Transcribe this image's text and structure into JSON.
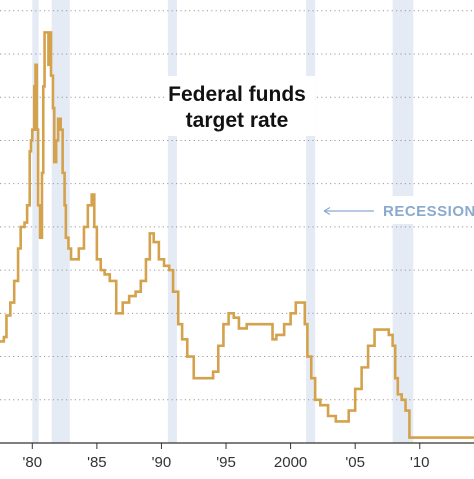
{
  "chart_data": {
    "type": "line",
    "title_lines": [
      "Federal funds",
      "target rate"
    ],
    "xlabel": "",
    "ylabel": "",
    "xlim": [
      1977.5,
      2014.2
    ],
    "ylim": [
      0,
      20.5
    ],
    "grid": true,
    "y_gridlines": [
      0,
      2,
      4,
      6,
      8,
      10,
      12,
      14,
      16,
      18,
      20
    ],
    "x_ticks": [
      {
        "value": 1980,
        "label": "'80"
      },
      {
        "value": 1985,
        "label": "'85"
      },
      {
        "value": 1990,
        "label": "'90"
      },
      {
        "value": 1995,
        "label": "'95"
      },
      {
        "value": 2000,
        "label": "2000"
      },
      {
        "value": 2005,
        "label": "'05"
      },
      {
        "value": 2010,
        "label": "'10"
      }
    ],
    "recession_label": "RECESSION",
    "recessions": [
      {
        "start": 1980.0,
        "end": 1980.5
      },
      {
        "start": 1981.5,
        "end": 1982.9
      },
      {
        "start": 1990.5,
        "end": 1991.2
      },
      {
        "start": 2001.2,
        "end": 2001.9
      },
      {
        "start": 2007.9,
        "end": 2009.5
      }
    ],
    "colors": {
      "line": "#d4a24c",
      "recession": "#e4ebf5",
      "grid": "#999999",
      "axis": "#333333",
      "recession_text": "#8aaad0"
    },
    "series": [
      {
        "x": [
          1977.5,
          1977.8,
          1978.0,
          1978.3,
          1978.6,
          1978.9,
          1979.1,
          1979.4,
          1979.6,
          1979.8,
          1979.9,
          1980.0,
          1980.15,
          1980.25,
          1980.35,
          1980.45,
          1980.6,
          1980.75,
          1980.85,
          1980.95,
          1981.1,
          1981.25,
          1981.35,
          1981.45,
          1981.6,
          1981.7,
          1981.85,
          1982.0,
          1982.1,
          1982.2,
          1982.35,
          1982.5,
          1982.6,
          1982.8,
          1983.0,
          1983.3,
          1983.6,
          1984.0,
          1984.3,
          1984.6,
          1984.8,
          1985.0,
          1985.3,
          1985.6,
          1986.0,
          1986.5,
          1987.0,
          1987.5,
          1988.0,
          1988.4,
          1988.8,
          1989.1,
          1989.4,
          1989.8,
          1990.2,
          1990.6,
          1990.9,
          1991.3,
          1991.6,
          1992.0,
          1992.5,
          1993.0,
          1993.6,
          1994.0,
          1994.4,
          1994.8,
          1995.2,
          1995.6,
          1996.0,
          1996.6,
          1997.2,
          1998.0,
          1998.6,
          1998.9,
          1999.5,
          2000.0,
          2000.4,
          2000.8,
          2001.1,
          2001.3,
          2001.6,
          2001.9,
          2002.3,
          2002.9,
          2003.5,
          2004.0,
          2004.5,
          2005.0,
          2005.5,
          2006.0,
          2006.5,
          2007.0,
          2007.6,
          2007.9,
          2008.1,
          2008.3,
          2008.6,
          2008.9,
          2009.2,
          2010.0,
          2011.0,
          2012.0,
          2013.0,
          2014.2
        ],
        "values": [
          4.7,
          4.9,
          5.9,
          6.5,
          7.5,
          9.0,
          10.0,
          10.2,
          11.0,
          13.5,
          14.0,
          14.5,
          16.5,
          17.5,
          14.5,
          11.0,
          9.5,
          12.5,
          16.5,
          19.0,
          19.0,
          17.5,
          19.0,
          17.0,
          15.5,
          13.0,
          14.0,
          15.0,
          15.0,
          14.5,
          12.5,
          11.0,
          9.5,
          9.0,
          8.5,
          8.5,
          9.0,
          10.0,
          11.0,
          11.5,
          10.0,
          8.5,
          8.0,
          7.8,
          7.5,
          6.0,
          6.5,
          6.8,
          7.0,
          7.5,
          8.5,
          9.7,
          9.3,
          8.5,
          8.2,
          8.0,
          7.0,
          5.5,
          4.8,
          4.0,
          3.0,
          3.0,
          3.0,
          3.3,
          4.5,
          5.5,
          6.0,
          5.8,
          5.3,
          5.5,
          5.5,
          5.5,
          4.8,
          5.0,
          5.5,
          6.0,
          6.5,
          6.5,
          5.5,
          4.0,
          3.0,
          2.0,
          1.75,
          1.25,
          1.0,
          1.0,
          1.5,
          2.5,
          3.5,
          4.5,
          5.25,
          5.25,
          5.0,
          4.5,
          3.0,
          2.25,
          2.0,
          1.5,
          0.25,
          0.25,
          0.25,
          0.25,
          0.25,
          0.25
        ]
      }
    ]
  }
}
